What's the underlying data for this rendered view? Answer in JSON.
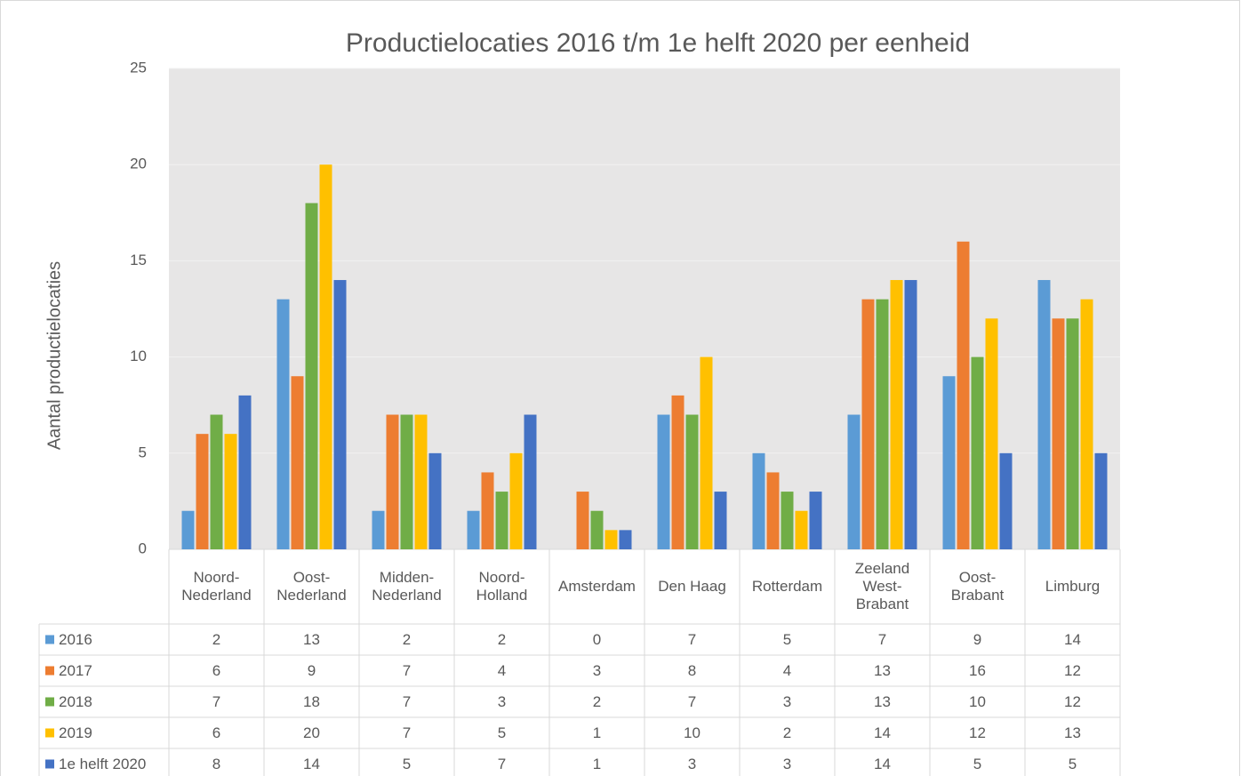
{
  "chart_data": {
    "type": "bar",
    "title": "Productielocaties 2016 t/m 1e helft 2020 per eenheid",
    "y_label": "Aantal productielocaties",
    "categories": [
      "Noord-\nNederland",
      "Oost-\nNederland",
      "Midden-\nNederland",
      "Noord-\nHolland",
      "Amsterdam",
      "Den Haag",
      "Rotterdam",
      "Zeeland\nWest-\nBrabant",
      "Oost-\nBrabant",
      "Limburg"
    ],
    "series": [
      {
        "name": "2016",
        "color": "#5b9bd5",
        "values": [
          2,
          13,
          2,
          2,
          0,
          7,
          5,
          7,
          9,
          14
        ]
      },
      {
        "name": "2017",
        "color": "#ed7d31",
        "values": [
          6,
          9,
          7,
          4,
          3,
          8,
          4,
          13,
          16,
          12
        ]
      },
      {
        "name": "2018",
        "color": "#70ad47",
        "values": [
          7,
          18,
          7,
          3,
          2,
          7,
          3,
          13,
          10,
          12
        ]
      },
      {
        "name": "2019",
        "color": "#ffc000",
        "values": [
          6,
          20,
          7,
          5,
          1,
          10,
          2,
          14,
          12,
          13
        ]
      },
      {
        "name": "1e helft 2020",
        "color": "#4472c4",
        "values": [
          8,
          14,
          5,
          7,
          1,
          3,
          3,
          14,
          5,
          5
        ]
      }
    ],
    "ylim": [
      0,
      25
    ],
    "yticks": [
      0,
      5,
      10,
      15,
      20,
      25
    ],
    "grid": true
  }
}
